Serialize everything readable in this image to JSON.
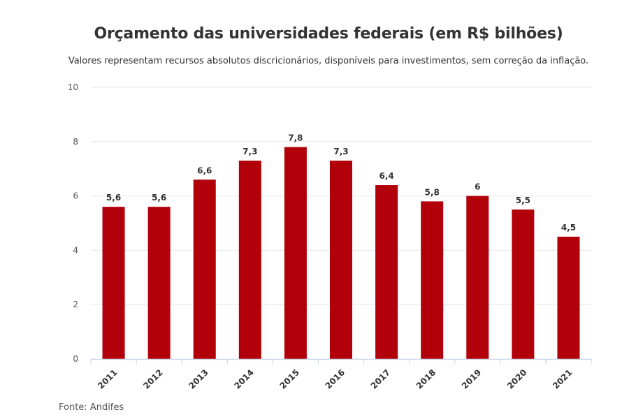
{
  "chart_data": {
    "type": "bar",
    "title": "Orçamento das universidades federais (em R$ bilhões)",
    "subtitle": "Valores representam recursos absolutos discricionários, disponíveis para investimentos, sem correção da inflação.",
    "categories": [
      "2011",
      "2012",
      "2013",
      "2014",
      "2015",
      "2016",
      "2017",
      "2018",
      "2019",
      "2020",
      "2021"
    ],
    "values": [
      5.6,
      5.6,
      6.6,
      7.3,
      7.8,
      7.3,
      6.4,
      5.8,
      6,
      5.5,
      4.5
    ],
    "value_labels": [
      "5,6",
      "5,6",
      "6,6",
      "7,3",
      "7,8",
      "7,3",
      "6,4",
      "5,8",
      "6",
      "5,5",
      "4,5"
    ],
    "y_ticks": [
      0,
      2,
      4,
      6,
      8,
      10
    ],
    "ylim": [
      0,
      10
    ],
    "xlabel": "",
    "ylabel": "",
    "grid": true,
    "legend": "none",
    "bar_color": "#b2000a",
    "source": "Fonte: Andifes"
  }
}
